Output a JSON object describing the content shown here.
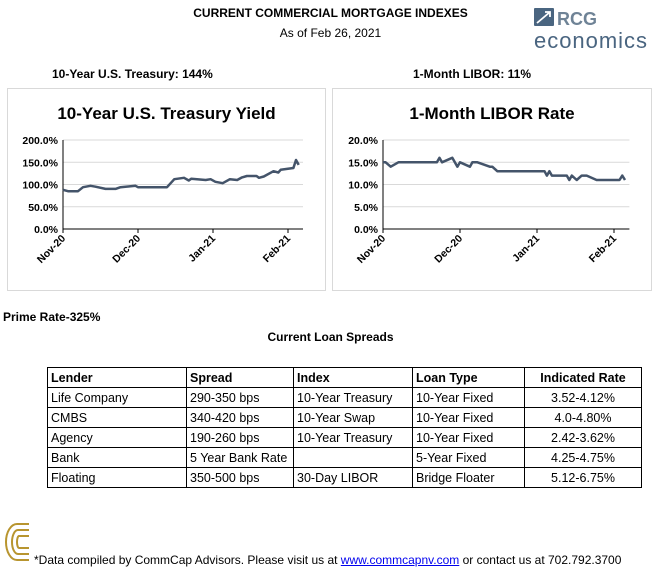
{
  "header": {
    "title": "CURRENT COMMERCIAL MORTGAGE INDEXES",
    "subtitle": "As of Feb 26, 2021",
    "logo_text": "RCG economics"
  },
  "summary": {
    "treasury": "10-Year U.S. Treasury: 144%",
    "libor": "1-Month LIBOR: 11%"
  },
  "colors": {
    "line": "#44546a",
    "grid": "#d9d9d9",
    "logo_gold": "#b8952f",
    "logo_blue": "#4a6580"
  },
  "chart_data": [
    {
      "type": "line",
      "title": "10-Year U.S. Treasury Yield",
      "ylim": [
        0,
        200
      ],
      "yticks": [
        "0.0%",
        "50.0%",
        "100.0%",
        "150.0%",
        "200.0%"
      ],
      "xticks": [
        "Nov-20",
        "Dec-20",
        "Jan-21",
        "Feb-21"
      ],
      "grid": true,
      "unit": "%",
      "x": [
        "2020-11-01",
        "2020-11-03",
        "2020-11-07",
        "2020-11-09",
        "2020-11-12",
        "2020-11-14",
        "2020-11-18",
        "2020-11-22",
        "2020-11-24",
        "2020-11-30",
        "2020-12-01",
        "2020-12-13",
        "2020-12-16",
        "2020-12-20",
        "2020-12-22",
        "2020-12-23",
        "2020-12-29",
        "2020-12-31",
        "2021-01-02",
        "2021-01-05",
        "2021-01-08",
        "2021-01-11",
        "2021-01-13",
        "2021-01-15",
        "2021-01-19",
        "2021-01-20",
        "2021-01-22",
        "2021-01-26",
        "2021-01-28",
        "2021-01-29",
        "2021-02-03",
        "2021-02-04",
        "2021-02-05"
      ],
      "values": [
        88,
        85,
        85,
        94,
        97,
        95,
        90,
        90,
        94,
        97,
        94,
        94,
        112,
        115,
        109,
        113,
        110,
        112,
        106,
        103,
        112,
        110,
        116,
        119,
        119,
        115,
        118,
        130,
        127,
        133,
        137,
        155,
        144
      ]
    },
    {
      "type": "line",
      "title": "1-Month LIBOR Rate",
      "ylim": [
        0,
        20
      ],
      "yticks": [
        "0.0%",
        "5.0%",
        "10.0%",
        "15.0%",
        "20.0%"
      ],
      "xticks": [
        "Nov-20",
        "Dec-20",
        "Jan-21",
        "Feb-21"
      ],
      "grid": true,
      "unit": "%",
      "x": [
        "2020-11-01",
        "2020-11-02",
        "2020-11-04",
        "2020-11-07",
        "2020-11-22",
        "2020-11-23",
        "2020-11-24",
        "2020-11-28",
        "2020-11-30",
        "2020-12-01",
        "2020-12-05",
        "2020-12-06",
        "2020-12-08",
        "2020-12-13",
        "2020-12-14",
        "2020-12-16",
        "2021-01-04",
        "2021-01-05",
        "2021-01-06",
        "2021-01-07",
        "2021-01-13",
        "2021-01-14",
        "2021-01-15",
        "2021-01-17",
        "2021-01-19",
        "2021-01-21",
        "2021-01-25",
        "2021-02-03",
        "2021-02-04",
        "2021-02-05"
      ],
      "values": [
        15,
        15,
        14,
        15,
        15,
        16,
        15,
        16,
        14,
        15,
        14,
        15,
        15,
        14,
        14,
        13,
        13,
        12,
        13,
        12,
        12,
        11,
        12,
        11,
        12,
        12,
        11,
        11,
        12,
        11
      ]
    }
  ],
  "prime": "Prime Rate-325%",
  "spreads": {
    "title": "Current Loan Spreads",
    "headers": [
      "Lender",
      "Spread",
      "Index",
      "Loan Type",
      "Indicated Rate"
    ],
    "rows": [
      [
        "Life Company",
        "290-350 bps",
        "10-Year Treasury",
        "10-Year Fixed",
        "3.52-4.12%"
      ],
      [
        "CMBS",
        "340-420 bps",
        "10-Year Swap",
        "10-Year Fixed",
        "4.0-4.80%"
      ],
      [
        "Agency",
        "190-260 bps",
        "10-Year Treasury",
        "10-Year Fixed",
        "2.42-3.62%"
      ],
      [
        "Bank",
        "5 Year Bank Rate",
        "",
        "5-Year Fixed",
        "4.25-4.75%"
      ],
      [
        "Floating",
        "350-500 bps",
        "30-Day LIBOR",
        "Bridge Floater",
        "5.12-6.75%"
      ]
    ]
  },
  "footer": {
    "prefix": "*Data compiled by CommCap Advisors.  Please visit us at ",
    "link": "www.commcapnv.com",
    "suffix": " or contact us at 702.792.3700"
  }
}
